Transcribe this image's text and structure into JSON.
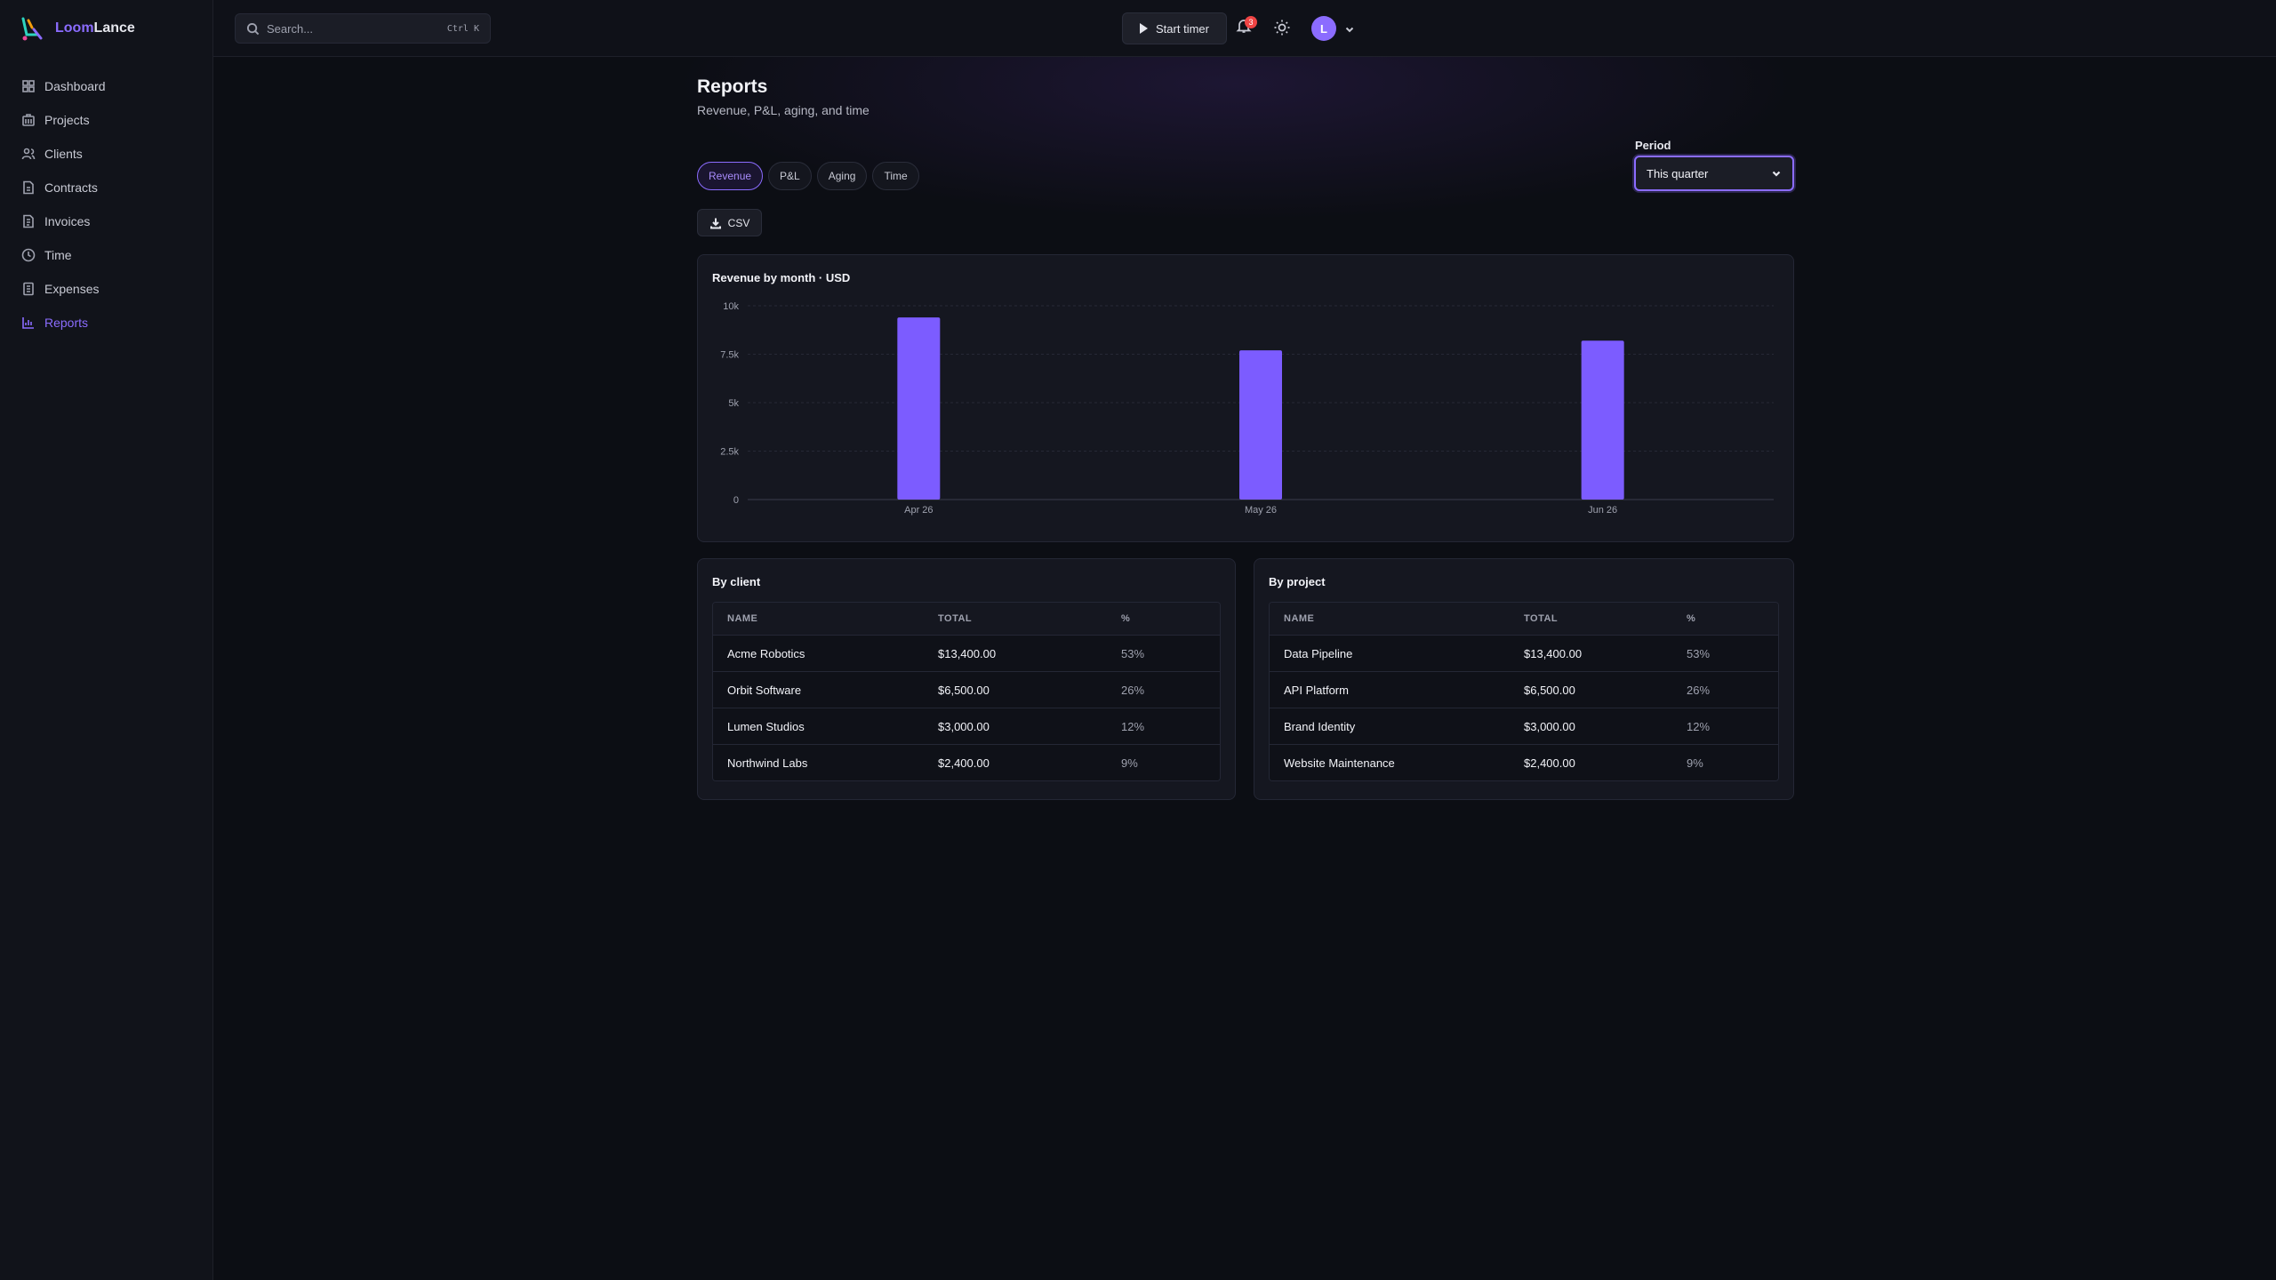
{
  "brand": {
    "name_part1": "Loom",
    "name_part2": "Lance"
  },
  "search": {
    "placeholder": "Search...",
    "shortcut": "Ctrl K"
  },
  "sidebar": {
    "items": [
      {
        "label": "Dashboard",
        "icon": "grid-icon"
      },
      {
        "label": "Projects",
        "icon": "briefcase-icon"
      },
      {
        "label": "Clients",
        "icon": "users-icon"
      },
      {
        "label": "Contracts",
        "icon": "document-icon"
      },
      {
        "label": "Invoices",
        "icon": "receipt-icon"
      },
      {
        "label": "Time",
        "icon": "clock-icon"
      },
      {
        "label": "Expenses",
        "icon": "ledger-icon"
      },
      {
        "label": "Reports",
        "icon": "bar-chart-icon",
        "active": true
      }
    ]
  },
  "topbar": {
    "start_timer": "Start timer",
    "notification_count": "3",
    "avatar_initial": "L"
  },
  "page": {
    "title": "Reports",
    "subtitle": "Revenue, P&L, aging, and time"
  },
  "tabs": [
    {
      "label": "Revenue",
      "active": true
    },
    {
      "label": "P&L"
    },
    {
      "label": "Aging"
    },
    {
      "label": "Time"
    }
  ],
  "csv_label": "CSV",
  "period": {
    "label": "Period",
    "value": "This quarter"
  },
  "chart_card_title": "Revenue by month · USD",
  "chart_data": {
    "type": "bar",
    "title": "Revenue by month · USD",
    "categories": [
      "Apr 26",
      "May 26",
      "Jun 26"
    ],
    "values": [
      9400,
      7700,
      8200
    ],
    "ylim": [
      0,
      10000
    ],
    "yticks": [
      0,
      2500,
      5000,
      7500,
      10000
    ],
    "ytick_labels": [
      "0",
      "2.5k",
      "5k",
      "7.5k",
      "10k"
    ],
    "grid": true,
    "color": "#7c5cff"
  },
  "by_client": {
    "title": "By client",
    "headers": [
      "NAME",
      "TOTAL",
      "%"
    ],
    "rows": [
      {
        "name": "Acme Robotics",
        "total": "$13,400.00",
        "pct": "53%"
      },
      {
        "name": "Orbit Software",
        "total": "$6,500.00",
        "pct": "26%"
      },
      {
        "name": "Lumen Studios",
        "total": "$3,000.00",
        "pct": "12%"
      },
      {
        "name": "Northwind Labs",
        "total": "$2,400.00",
        "pct": "9%"
      }
    ]
  },
  "by_project": {
    "title": "By project",
    "headers": [
      "NAME",
      "TOTAL",
      "%"
    ],
    "rows": [
      {
        "name": "Data Pipeline",
        "total": "$13,400.00",
        "pct": "53%"
      },
      {
        "name": "API Platform",
        "total": "$6,500.00",
        "pct": "26%"
      },
      {
        "name": "Brand Identity",
        "total": "$3,000.00",
        "pct": "12%"
      },
      {
        "name": "Website Maintenance",
        "total": "$2,400.00",
        "pct": "9%"
      }
    ]
  },
  "colors": {
    "accent": "#8b6cff",
    "bar": "#7c5cff",
    "background": "#0c0e14"
  }
}
